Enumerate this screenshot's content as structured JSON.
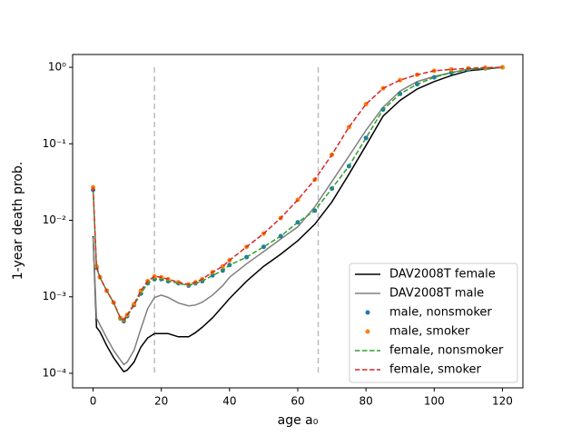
{
  "chart_data": {
    "type": "line",
    "xlabel": "age a₀",
    "ylabel": "1-year death prob.",
    "x": [
      0,
      1,
      2,
      4,
      6,
      8,
      9,
      10,
      12,
      14,
      16,
      18,
      20,
      22,
      25,
      28,
      30,
      32,
      35,
      38,
      40,
      45,
      50,
      55,
      60,
      65,
      70,
      75,
      80,
      85,
      90,
      95,
      100,
      105,
      110,
      115,
      120
    ],
    "series": [
      {
        "name": "DAV2008T female",
        "color": "#000000",
        "linestyle": "solid",
        "values": [
          0.0062,
          0.0004,
          0.00035,
          0.00023,
          0.00016,
          0.00012,
          0.000105,
          0.00011,
          0.00014,
          0.00022,
          0.00029,
          0.00033,
          0.00033,
          0.00033,
          0.0003,
          0.0003,
          0.00034,
          0.0004,
          0.00053,
          0.00075,
          0.00095,
          0.0016,
          0.0025,
          0.0036,
          0.0054,
          0.0089,
          0.0174,
          0.04,
          0.095,
          0.23,
          0.37,
          0.52,
          0.65,
          0.78,
          0.9,
          0.95,
          1.0
        ]
      },
      {
        "name": "DAV2008T male",
        "color": "#808080",
        "linestyle": "solid",
        "values": [
          0.006,
          0.00053,
          0.00043,
          0.00029,
          0.0002,
          0.00015,
          0.00013,
          0.00014,
          0.0002,
          0.00038,
          0.0007,
          0.00098,
          0.00105,
          0.00098,
          0.00083,
          0.00076,
          0.00078,
          0.00085,
          0.00105,
          0.0014,
          0.0018,
          0.0027,
          0.0039,
          0.0057,
          0.0082,
          0.015,
          0.032,
          0.069,
          0.15,
          0.3,
          0.49,
          0.65,
          0.76,
          0.85,
          0.95,
          0.97,
          1.0
        ]
      },
      {
        "name": "male, nonsmoker",
        "color": "#1f77b4",
        "marker": "dot",
        "values": [
          0.025,
          0.0024,
          0.0018,
          0.0012,
          0.00084,
          0.00052,
          0.00048,
          0.00056,
          0.00078,
          0.0011,
          0.0015,
          0.0017,
          0.0017,
          0.0016,
          0.0015,
          0.0014,
          0.0015,
          0.0016,
          0.0019,
          0.0022,
          0.0026,
          0.0033,
          0.0045,
          0.0062,
          0.0094,
          0.0134,
          0.026,
          0.051,
          0.119,
          0.28,
          0.45,
          0.6,
          0.74,
          0.85,
          0.93,
          0.97,
          1.0
        ]
      },
      {
        "name": "male, smoker",
        "color": "#ff7f0e",
        "marker": "dot",
        "values": [
          0.027,
          0.0025,
          0.0018,
          0.0012,
          0.00084,
          0.00053,
          0.0005,
          0.00058,
          0.0008,
          0.0012,
          0.0016,
          0.00185,
          0.0018,
          0.0017,
          0.00155,
          0.00145,
          0.00155,
          0.0017,
          0.0021,
          0.0025,
          0.003,
          0.0045,
          0.0067,
          0.0107,
          0.0185,
          0.034,
          0.072,
          0.165,
          0.33,
          0.53,
          0.68,
          0.8,
          0.9,
          0.94,
          0.97,
          0.99,
          1.0
        ]
      },
      {
        "name": "female, nonsmoker",
        "color": "#2ca02c",
        "linestyle": "dashed",
        "values": [
          0.025,
          0.0024,
          0.0018,
          0.0012,
          0.00084,
          0.00052,
          0.00048,
          0.00056,
          0.00078,
          0.0011,
          0.0015,
          0.0017,
          0.0017,
          0.0016,
          0.0015,
          0.0014,
          0.0015,
          0.0016,
          0.0019,
          0.0022,
          0.0026,
          0.0033,
          0.0045,
          0.0062,
          0.0094,
          0.0134,
          0.026,
          0.051,
          0.119,
          0.28,
          0.45,
          0.6,
          0.74,
          0.85,
          0.93,
          0.97,
          1.0
        ]
      },
      {
        "name": "female, smoker",
        "color": "#d62728",
        "linestyle": "dashed",
        "values": [
          0.027,
          0.0025,
          0.0018,
          0.0012,
          0.00084,
          0.00053,
          0.0005,
          0.00058,
          0.0008,
          0.0012,
          0.0016,
          0.00185,
          0.0018,
          0.0017,
          0.00155,
          0.00145,
          0.00155,
          0.0017,
          0.0021,
          0.0025,
          0.003,
          0.0045,
          0.0067,
          0.0107,
          0.0185,
          0.034,
          0.072,
          0.165,
          0.33,
          0.53,
          0.68,
          0.8,
          0.9,
          0.94,
          0.97,
          0.99,
          1.0
        ]
      }
    ],
    "vlines": [
      18,
      66
    ],
    "xlim": [
      -6,
      126
    ],
    "xticks": [
      0,
      20,
      40,
      60,
      80,
      100,
      120
    ],
    "ylim": [
      6.45e-05,
      1.47
    ],
    "yscale": "log",
    "yticks": [
      {
        "value": 0.0001,
        "label": "10⁻⁴"
      },
      {
        "value": 0.001,
        "label": "10⁻³"
      },
      {
        "value": 0.01,
        "label": "10⁻²"
      },
      {
        "value": 0.1,
        "label": "10⁻¹"
      },
      {
        "value": 1,
        "label": "10⁰"
      }
    ],
    "legend": "lower right"
  }
}
